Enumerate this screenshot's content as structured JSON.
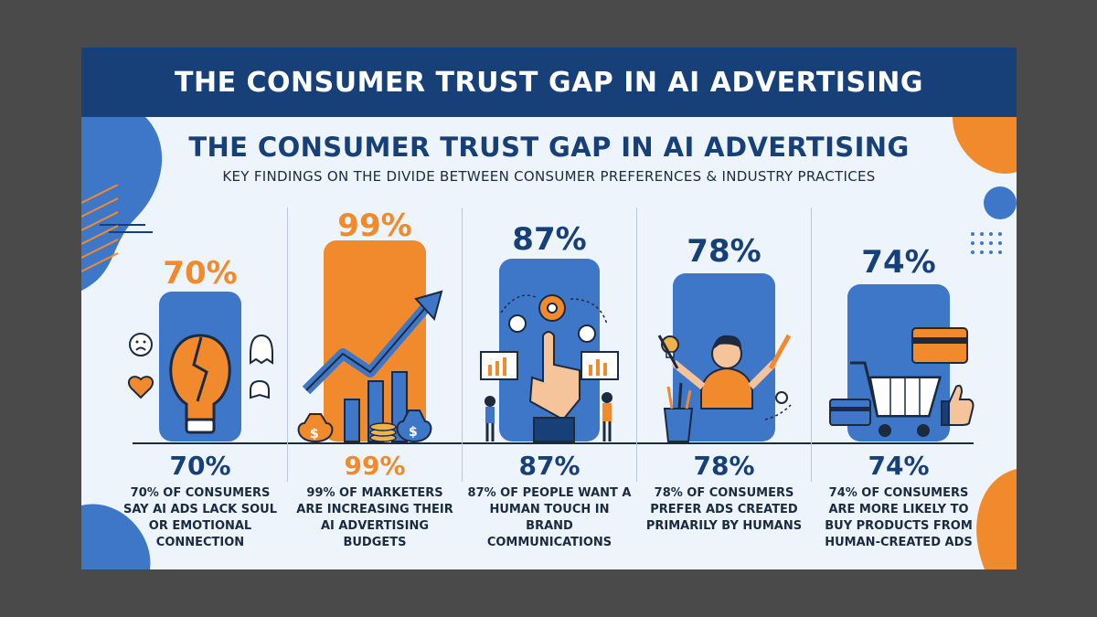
{
  "banner": {
    "title": "THE CONSUMER TRUST GAP IN AI ADVERTISING"
  },
  "header": {
    "title": "THE CONSUMER TRUST GAP IN AI ADVERTISING",
    "subtitle": "KEY FINDINGS ON THE DIVIDE BETWEEN CONSUMER PREFERENCES & INDUSTRY PRACTICES"
  },
  "colors": {
    "navy": "#173f78",
    "blue": "#3f77c8",
    "orange": "#f08a2c",
    "background": "#eef4fb"
  },
  "stats": [
    {
      "value": "70%",
      "value_bottom": "70%",
      "caption": "70% OF CONSUMERS SAY AI ADS LACK SOUL OR EMOTIONAL CONNECTION",
      "color": "#f08a2c",
      "icon": "broken-lightbulb-icon"
    },
    {
      "value": "99%",
      "value_bottom": "99%",
      "caption": "99% OF MARKETERS ARE INCREASING THEIR AI ADVERTISING BUDGETS",
      "color": "#f08a2c",
      "icon": "rising-arrow-chart-icon"
    },
    {
      "value": "87%",
      "value_bottom": "87%",
      "caption": "87% OF PEOPLE WANT A HUMAN TOUCH IN BRAND COMMUNICATIONS",
      "color": "#173f78",
      "icon": "pointing-hand-gears-icon"
    },
    {
      "value": "78%",
      "value_bottom": "78%",
      "caption": "78% OF CONSUMERS PREFER ADS CREATED PRIMARILY BY HUMANS",
      "color": "#173f78",
      "icon": "human-artist-icon"
    },
    {
      "value": "74%",
      "value_bottom": "74%",
      "caption": "74% OF CONSUMERS ARE MORE LIKELY TO BUY PRODUCTS FROM HUMAN-CREATED ADS",
      "color": "#173f78",
      "icon": "shopping-cart-icon"
    }
  ]
}
